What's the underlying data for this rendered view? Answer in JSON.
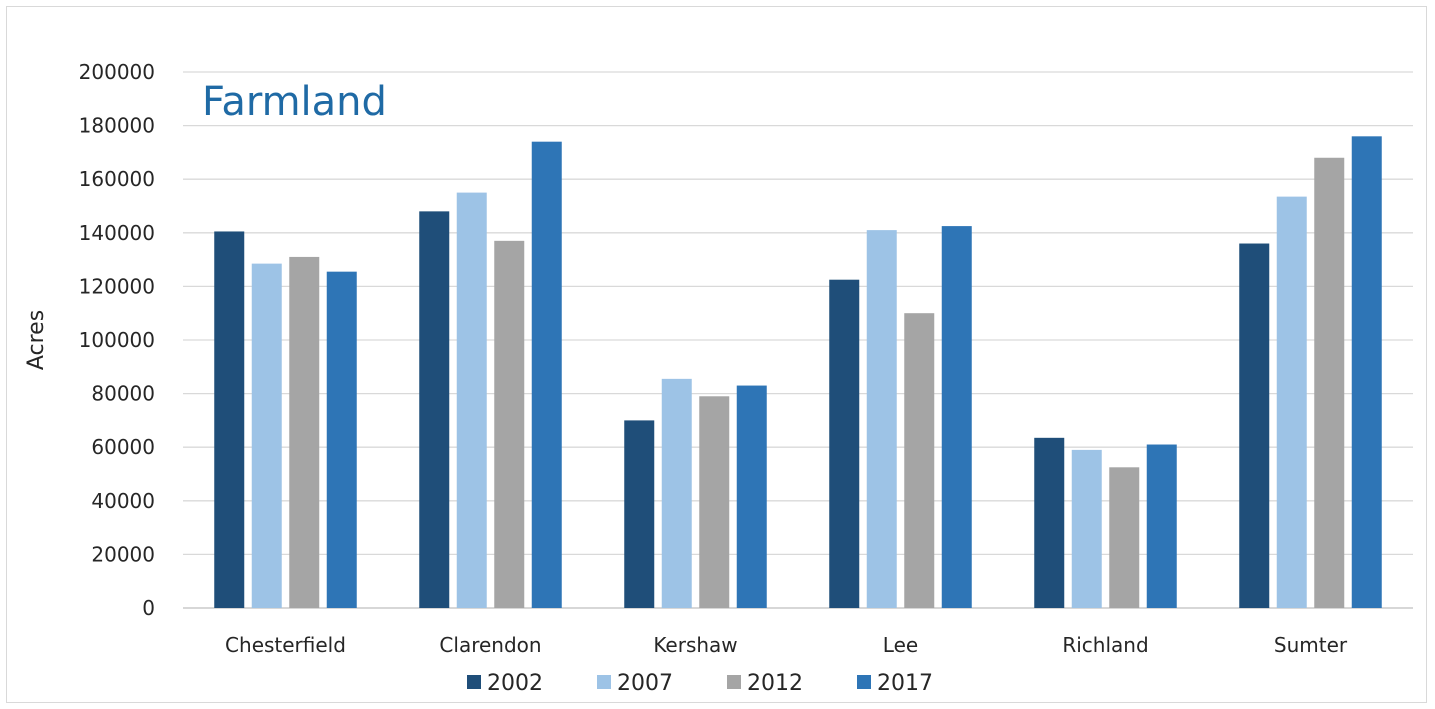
{
  "chart_data": {
    "type": "bar",
    "title": "Farmland",
    "xlabel": "",
    "ylabel": "Acres",
    "ylim": [
      0,
      200000
    ],
    "yticks": [
      0,
      20000,
      40000,
      60000,
      80000,
      100000,
      120000,
      140000,
      160000,
      180000,
      200000
    ],
    "grid": true,
    "legend_position": "bottom",
    "categories": [
      "Chesterfield",
      "Clarendon",
      "Kershaw",
      "Lee",
      "Richland",
      "Sumter"
    ],
    "series": [
      {
        "name": "2002",
        "color": "#1f4e79",
        "values": [
          140500,
          148000,
          70000,
          122500,
          63500,
          136000
        ]
      },
      {
        "name": "2007",
        "color": "#9dc3e6",
        "values": [
          128500,
          155000,
          85500,
          141000,
          59000,
          153500
        ]
      },
      {
        "name": "2012",
        "color": "#a5a5a5",
        "values": [
          131000,
          137000,
          79000,
          110000,
          52500,
          168000
        ]
      },
      {
        "name": "2017",
        "color": "#2e75b6",
        "values": [
          125500,
          174000,
          83000,
          142500,
          61000,
          176000
        ]
      }
    ]
  }
}
